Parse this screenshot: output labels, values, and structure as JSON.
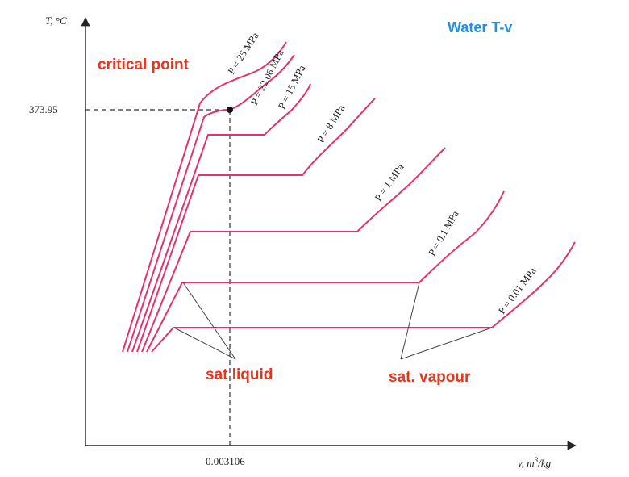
{
  "title": "Water T-v",
  "axes": {
    "y_label": "T, °C",
    "x_label_prefix": "v, m",
    "x_label_sup": "3",
    "x_label_suffix": "/kg",
    "critical_temperature_tick": "373.95",
    "critical_volume_tick": "0.003106"
  },
  "isobars": [
    {
      "id": "p25",
      "label": "P = 25 MPa"
    },
    {
      "id": "p2206",
      "label": "P = 22.06 MPa"
    },
    {
      "id": "p15",
      "label": "P = 15 MPa"
    },
    {
      "id": "p8",
      "label": "P = 8 MPa"
    },
    {
      "id": "p1",
      "label": "P = 1 MPa"
    },
    {
      "id": "p01",
      "label": "P = 0.1 MPa"
    },
    {
      "id": "p001",
      "label": "P = 0.01 MPa"
    }
  ],
  "annotations": {
    "critical_point": "critical point",
    "sat_liquid": "sat liquid",
    "sat_vapour": "sat. vapour"
  },
  "colors": {
    "isobar": "#e8306e",
    "annotation": "#e8341c",
    "title": "#1e90e8",
    "axis": "#222222"
  }
}
